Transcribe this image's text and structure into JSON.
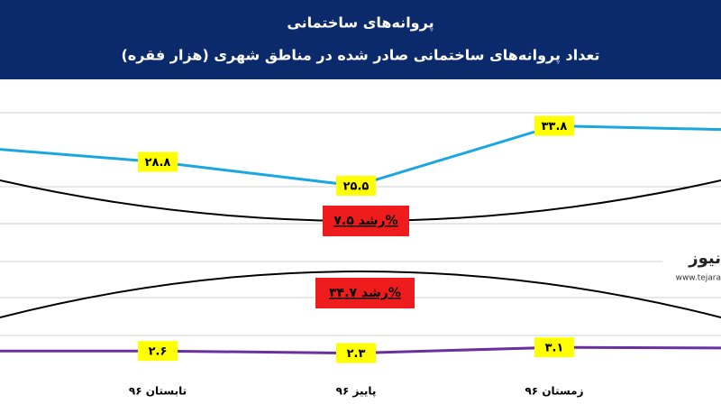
{
  "chart_data": {
    "type": "line",
    "title": "پروانه‌های ساختمانی",
    "subtitle": "تعداد پروانه‌های ساختمانی صادر شده در مناطق شهری (هزار فقره)",
    "categories": [
      null,
      "تابستان ۹۶",
      "پاییز ۹۶",
      "زمستان ۹۶",
      null
    ],
    "series": [
      {
        "color": "#1aa7e0",
        "values": [
          31,
          28.8,
          25.5,
          33.8,
          33.2
        ],
        "value_labels": [
          null,
          "۲۸.۸",
          "۲۵.۵",
          "۳۳.۸",
          null
        ]
      },
      {
        "color": "#6a2fa0",
        "values": [
          2.6,
          2.6,
          2.3,
          3.1,
          3.0
        ],
        "value_labels": [
          null,
          "۲.۶",
          "۲.۳",
          "۳.۱",
          null
        ]
      }
    ],
    "ylim": [
      0,
      40
    ],
    "annotations": [
      "رشد ۷.۵%",
      "رشد ۳۴.۷%"
    ],
    "logo": [
      "نیوز",
      "www.tejara"
    ]
  }
}
